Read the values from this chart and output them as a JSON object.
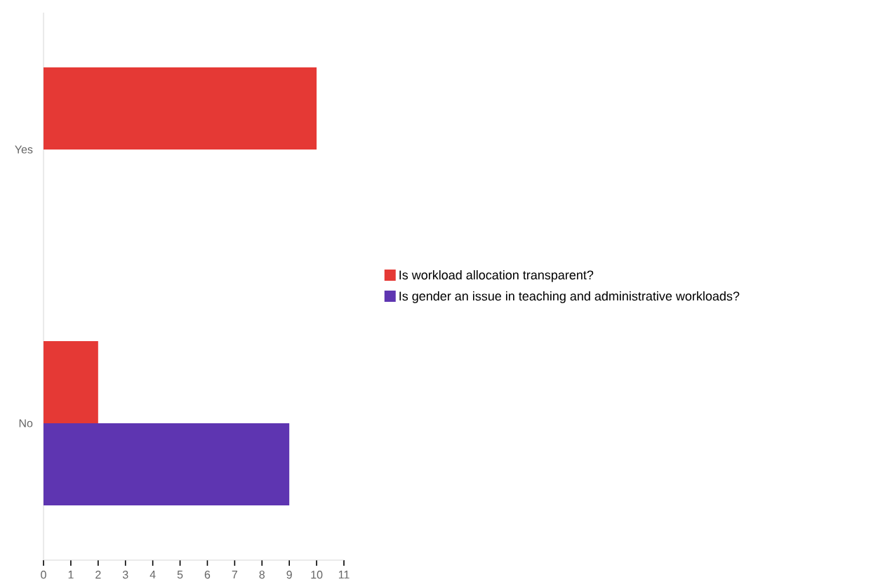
{
  "chart_data": {
    "type": "bar",
    "orientation": "horizontal",
    "categories": [
      "Yes",
      "No"
    ],
    "series": [
      {
        "name": "Is workload allocation transparent?",
        "color": "#e53935",
        "values": [
          10,
          2
        ]
      },
      {
        "name": "Is gender an issue in teaching and administrative workloads?",
        "color": "#5e35b1",
        "values": [
          null,
          9
        ]
      }
    ],
    "xlim": [
      0,
      11
    ],
    "xticks": [
      0,
      1,
      2,
      3,
      4,
      5,
      6,
      7,
      8,
      9,
      10,
      11
    ],
    "legend": "right"
  }
}
